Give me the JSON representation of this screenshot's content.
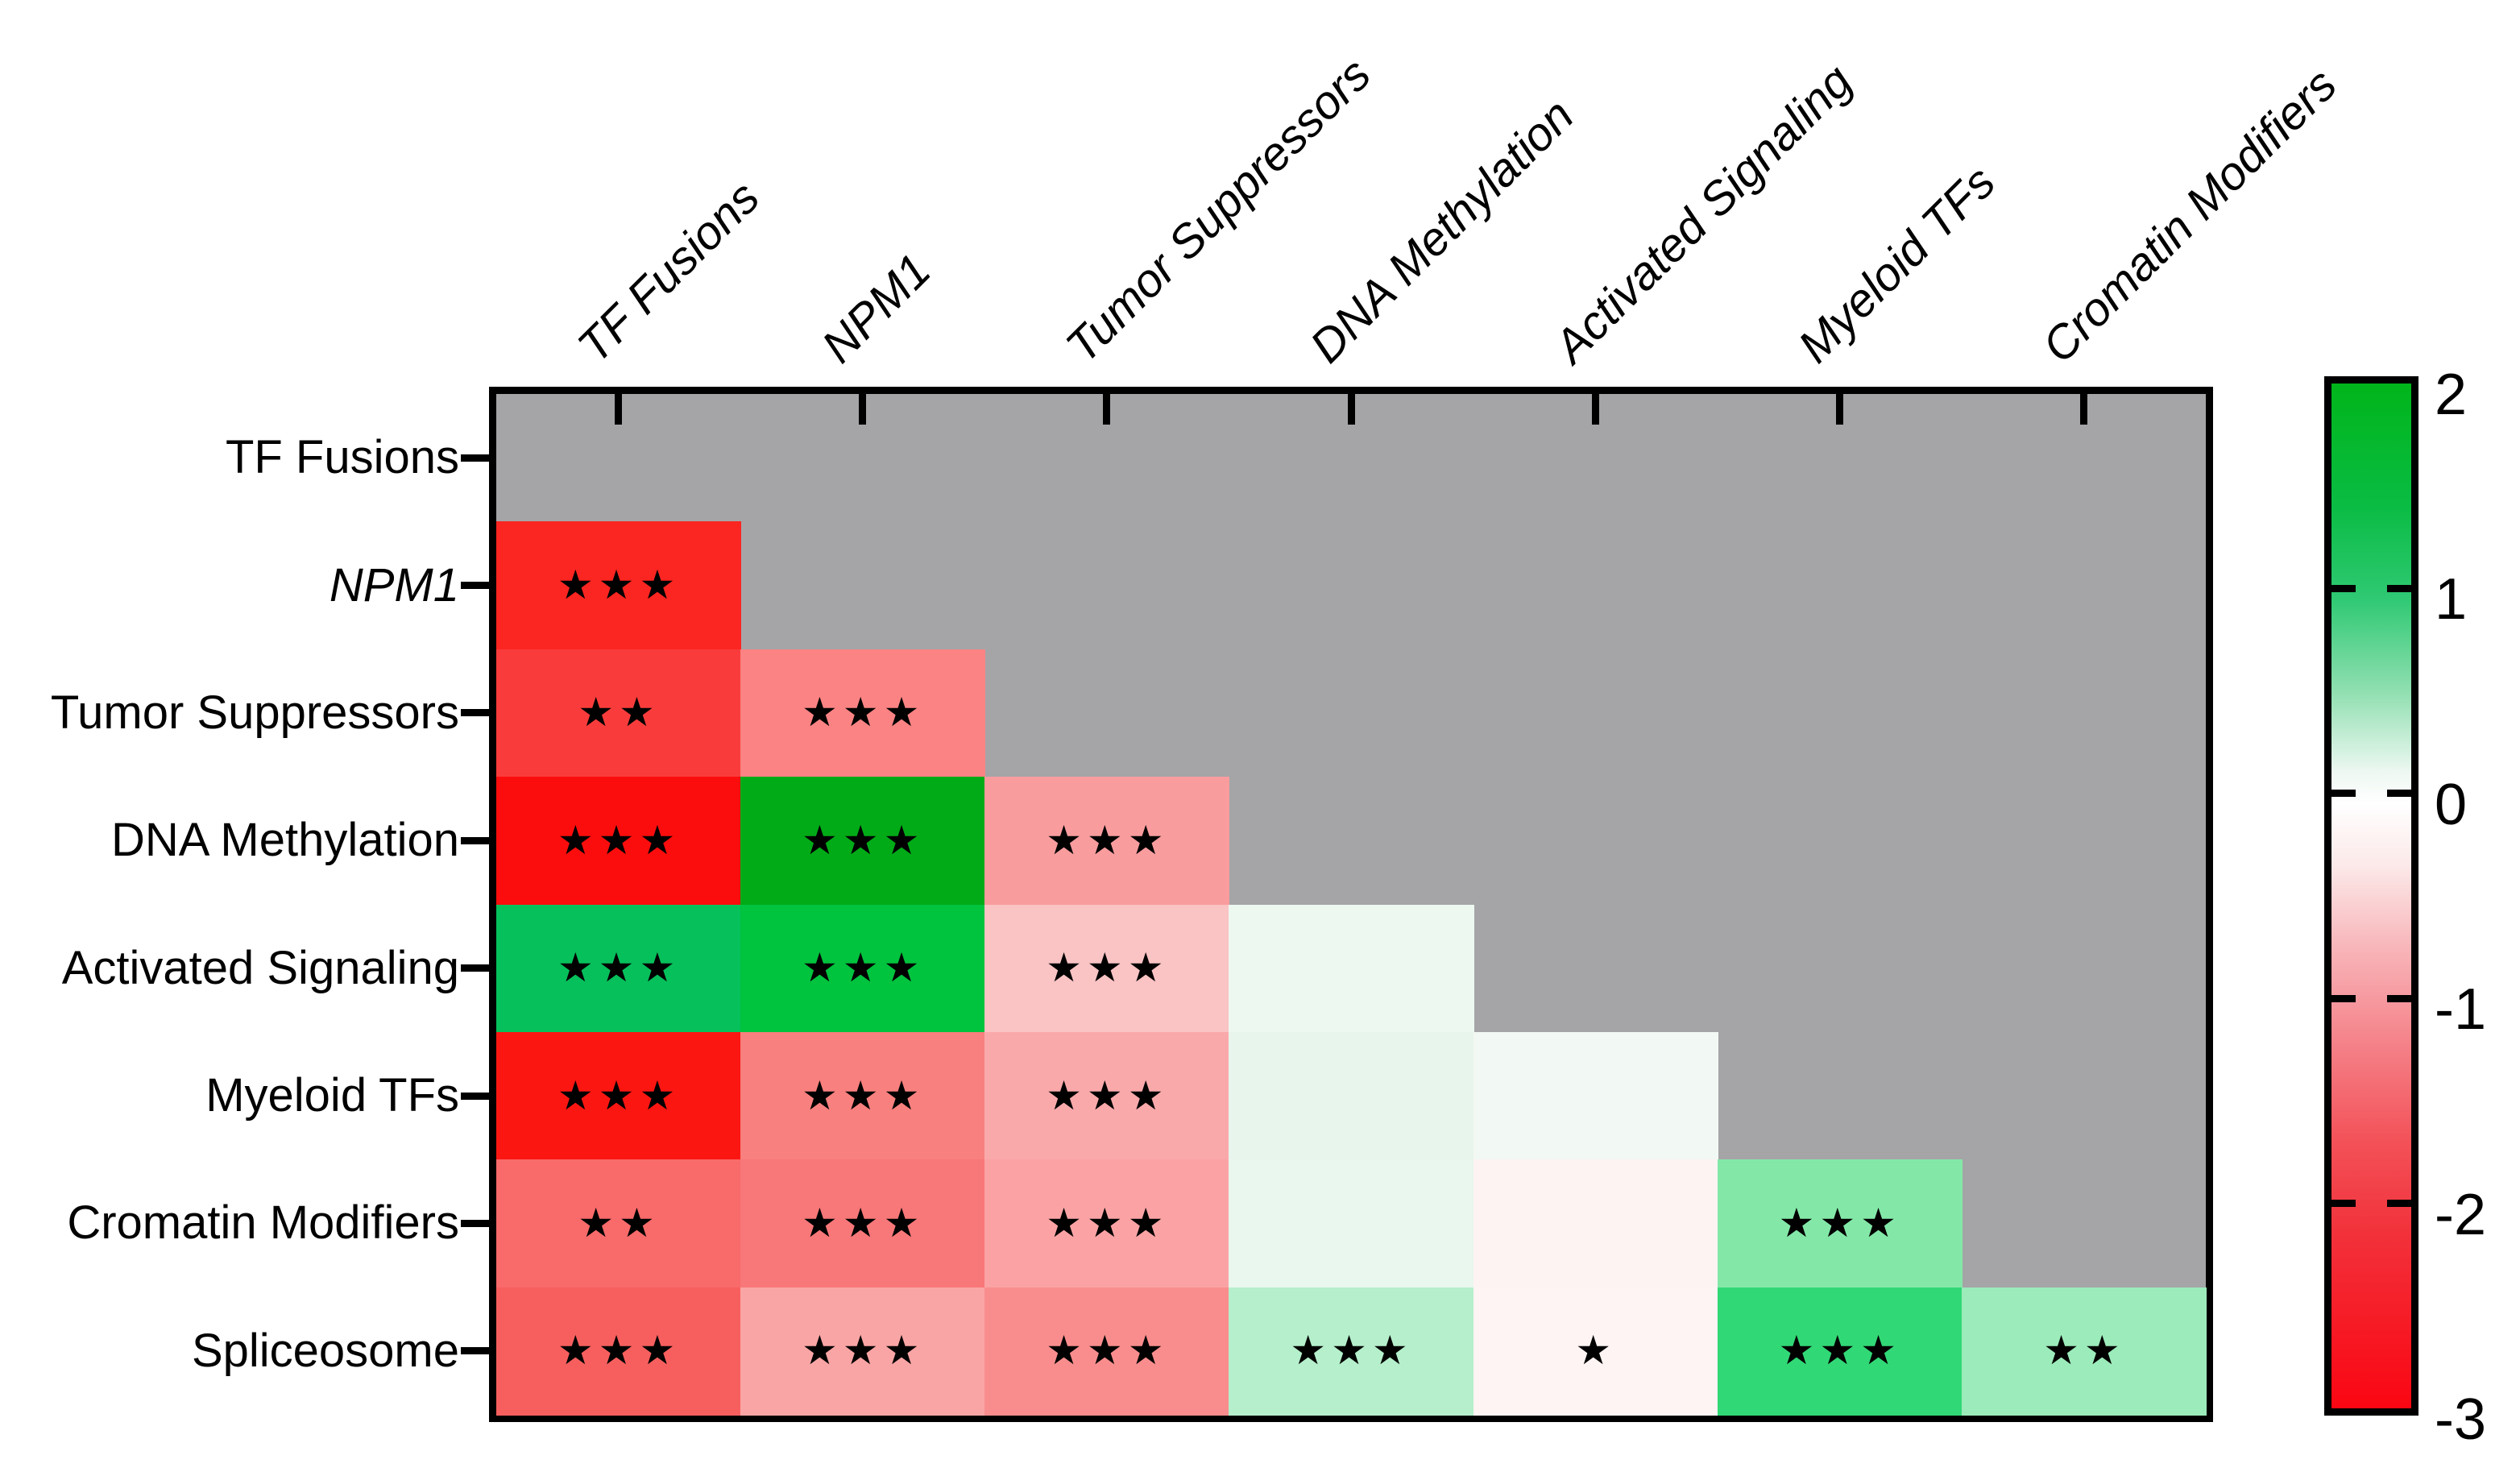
{
  "figure": {
    "kind": "mutation-group co-occurrence / mutual exclusivity heatmap",
    "background": "#ffffff",
    "empty_cell_color": "#a5a5a7",
    "frame_color": "#000000",
    "star_glyph": "★"
  },
  "chart_data": {
    "type": "heatmap",
    "title": "",
    "xlabel": "",
    "ylabel": "",
    "legend_position": "right-colorbar",
    "grid": false,
    "row_labels": [
      "TF Fusions",
      "NPM1",
      "Tumor Suppressors",
      "DNA Methylation",
      "Activated Signaling",
      "Myeloid TFs",
      "Cromatin Modifiers",
      "Spliceosome"
    ],
    "row_label_italic": [
      false,
      true,
      false,
      false,
      false,
      false,
      false,
      false
    ],
    "col_labels": [
      "TF Fusions",
      "NPM1",
      "Tumor Suppressors",
      "DNA Methylation",
      "Activated Signaling",
      "Myeloid TFs",
      "Cromatin Modifiers"
    ],
    "col_labels_italic": true,
    "cells": [
      {
        "row": "NPM1",
        "col": "TF Fusions",
        "value": -2.6,
        "color": "#fb2521",
        "sig": "***"
      },
      {
        "row": "Tumor Suppressors",
        "col": "TF Fusions",
        "value": -2.1,
        "color": "#f93c3b",
        "sig": "**"
      },
      {
        "row": "Tumor Suppressors",
        "col": "NPM1",
        "value": -1.1,
        "color": "#fb8383",
        "sig": "***"
      },
      {
        "row": "DNA Methylation",
        "col": "TF Fusions",
        "value": -3.0,
        "color": "#fb0d0d",
        "sig": "***"
      },
      {
        "row": "DNA Methylation",
        "col": "NPM1",
        "value": 2.0,
        "color": "#00ab17",
        "sig": "***"
      },
      {
        "row": "DNA Methylation",
        "col": "Tumor Suppressors",
        "value": -0.9,
        "color": "#f99c9e",
        "sig": "***"
      },
      {
        "row": "Activated Signaling",
        "col": "TF Fusions",
        "value": 1.3,
        "color": "#06c05b",
        "sig": "***"
      },
      {
        "row": "Activated Signaling",
        "col": "NPM1",
        "value": 1.6,
        "color": "#00c33e",
        "sig": "***"
      },
      {
        "row": "Activated Signaling",
        "col": "Tumor Suppressors",
        "value": -0.55,
        "color": "#fac3c4",
        "sig": "***"
      },
      {
        "row": "Activated Signaling",
        "col": "DNA Methylation",
        "value": 0.05,
        "color": "#edf8f1",
        "sig": ""
      },
      {
        "row": "Myeloid TFs",
        "col": "TF Fusions",
        "value": -2.8,
        "color": "#fb1612",
        "sig": "***"
      },
      {
        "row": "Myeloid TFs",
        "col": "NPM1",
        "value": -1.15,
        "color": "#f8807e",
        "sig": "***"
      },
      {
        "row": "Myeloid TFs",
        "col": "Tumor Suppressors",
        "value": -0.8,
        "color": "#faa9ab",
        "sig": "***"
      },
      {
        "row": "Myeloid TFs",
        "col": "DNA Methylation",
        "value": 0.1,
        "color": "#e8f5ec",
        "sig": ""
      },
      {
        "row": "Myeloid TFs",
        "col": "Activated Signaling",
        "value": 0.04,
        "color": "#f2f8f3",
        "sig": ""
      },
      {
        "row": "Cromatin Modifiers",
        "col": "TF Fusions",
        "value": -1.5,
        "color": "#f96a6a",
        "sig": "**"
      },
      {
        "row": "Cromatin Modifiers",
        "col": "NPM1",
        "value": -1.3,
        "color": "#f87778",
        "sig": "***"
      },
      {
        "row": "Cromatin Modifiers",
        "col": "Tumor Suppressors",
        "value": -0.85,
        "color": "#fba3a4",
        "sig": "***"
      },
      {
        "row": "Cromatin Modifiers",
        "col": "DNA Methylation",
        "value": 0.08,
        "color": "#e9f7ee",
        "sig": ""
      },
      {
        "row": "Cromatin Modifiers",
        "col": "Activated Signaling",
        "value": -0.04,
        "color": "#fdf3f2",
        "sig": ""
      },
      {
        "row": "Cromatin Modifiers",
        "col": "Myeloid TFs",
        "value": 0.6,
        "color": "#83e8a7",
        "sig": "***"
      },
      {
        "row": "Spliceosome",
        "col": "TF Fusions",
        "value": -1.6,
        "color": "#f75f5e",
        "sig": "***"
      },
      {
        "row": "Spliceosome",
        "col": "NPM1",
        "value": -0.8,
        "color": "#faa5a5",
        "sig": "***"
      },
      {
        "row": "Spliceosome",
        "col": "Tumor Suppressors",
        "value": -1.0,
        "color": "#f98d8d",
        "sig": "***"
      },
      {
        "row": "Spliceosome",
        "col": "DNA Methylation",
        "value": 0.4,
        "color": "#b5efcb",
        "sig": "***"
      },
      {
        "row": "Spliceosome",
        "col": "Activated Signaling",
        "value": -0.03,
        "color": "#fef4f3",
        "sig": "*"
      },
      {
        "row": "Spliceosome",
        "col": "Myeloid TFs",
        "value": 1.1,
        "color": "#31d876",
        "sig": "***"
      },
      {
        "row": "Spliceosome",
        "col": "Cromatin Modifiers",
        "value": 0.5,
        "color": "#9cebba",
        "sig": "**"
      }
    ],
    "colorbar": {
      "max": 2,
      "min": -3,
      "tick_labels": [
        "2",
        "1",
        "0",
        "-1",
        "-2",
        "-3"
      ],
      "top_color": "#00b51a",
      "mid_color": "#ffffff",
      "bottom_color": "#fa0612"
    }
  }
}
